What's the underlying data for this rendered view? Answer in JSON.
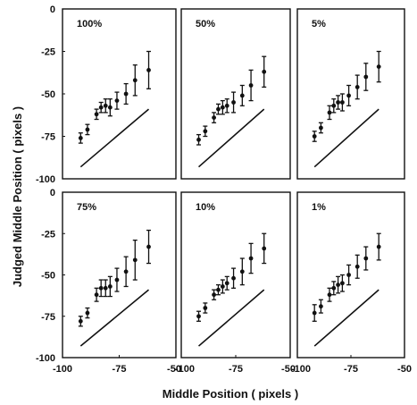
{
  "chart_data": {
    "type": "scatter",
    "ylabel": "Judged Middle Position ( pixels )",
    "xlabel": "Middle Position ( pixels )",
    "x_tick_labels": [
      "-100",
      "-75",
      "-50",
      "-100",
      "-75",
      "-50",
      "-100",
      "-75",
      "-50"
    ],
    "y_tick_labels_top": [
      "0",
      "-25",
      "-50",
      "-75",
      "-100"
    ],
    "y_tick_labels_bottom": [
      "0",
      "-25",
      "-50",
      "-75",
      "-100"
    ],
    "panels": [
      {
        "label": "100%",
        "x": [
          -92,
          -89,
          -85,
          -83,
          -81,
          -79,
          -76,
          -72,
          -68,
          -62
        ],
        "y": [
          -76,
          -71,
          -62,
          -58,
          -57,
          -58,
          -54,
          -50,
          -42,
          -36
        ],
        "err": [
          3,
          3,
          3,
          3,
          4,
          5,
          5,
          6,
          9,
          11
        ],
        "line": [
          [
            -92,
            -93
          ],
          [
            -62,
            -59
          ]
        ]
      },
      {
        "label": "50%",
        "x": [
          -92,
          -89,
          -85,
          -83,
          -81,
          -79,
          -76,
          -72,
          -68,
          -62
        ],
        "y": [
          -77,
          -72,
          -64,
          -59,
          -58,
          -57,
          -55,
          -51,
          -45,
          -37
        ],
        "err": [
          3,
          3,
          3,
          3,
          4,
          4,
          6,
          6,
          9,
          9
        ],
        "line": [
          [
            -92,
            -93
          ],
          [
            -62,
            -59
          ]
        ]
      },
      {
        "label": "5%",
        "x": [
          -92,
          -89,
          -85,
          -83,
          -81,
          -79,
          -76,
          -72,
          -68,
          -62
        ],
        "y": [
          -75,
          -70,
          -61,
          -57,
          -55,
          -55,
          -51,
          -46,
          -40,
          -34
        ],
        "err": [
          3,
          3,
          4,
          4,
          4,
          5,
          6,
          7,
          8,
          9
        ],
        "line": [
          [
            -92,
            -93
          ],
          [
            -62,
            -59
          ]
        ]
      },
      {
        "label": "75%",
        "x": [
          -92,
          -89,
          -85,
          -83,
          -81,
          -79,
          -76,
          -72,
          -68,
          -62
        ],
        "y": [
          -78,
          -73,
          -62,
          -58,
          -58,
          -57,
          -53,
          -48,
          -41,
          -33
        ],
        "err": [
          3,
          3,
          4,
          5,
          5,
          6,
          7,
          9,
          12,
          10
        ],
        "line": [
          [
            -92,
            -93
          ],
          [
            -62,
            -59
          ]
        ]
      },
      {
        "label": "10%",
        "x": [
          -92,
          -89,
          -85,
          -83,
          -81,
          -79,
          -76,
          -72,
          -68,
          -62
        ],
        "y": [
          -75,
          -70,
          -62,
          -59,
          -57,
          -55,
          -52,
          -48,
          -40,
          -34
        ],
        "err": [
          3,
          3,
          3,
          3,
          4,
          4,
          6,
          8,
          9,
          9
        ],
        "line": [
          [
            -92,
            -93
          ],
          [
            -62,
            -59
          ]
        ]
      },
      {
        "label": "1%",
        "x": [
          -92,
          -89,
          -85,
          -83,
          -81,
          -79,
          -76,
          -72,
          -68,
          -62
        ],
        "y": [
          -73,
          -69,
          -62,
          -58,
          -56,
          -55,
          -50,
          -45,
          -40,
          -33
        ],
        "err": [
          5,
          4,
          4,
          4,
          5,
          5,
          6,
          7,
          7,
          8
        ],
        "line": [
          [
            -92,
            -93
          ],
          [
            -62,
            -59
          ]
        ]
      }
    ],
    "xlim": [
      -100,
      -50
    ],
    "ylim": [
      -100,
      0
    ],
    "grid": false,
    "legend": "none"
  }
}
